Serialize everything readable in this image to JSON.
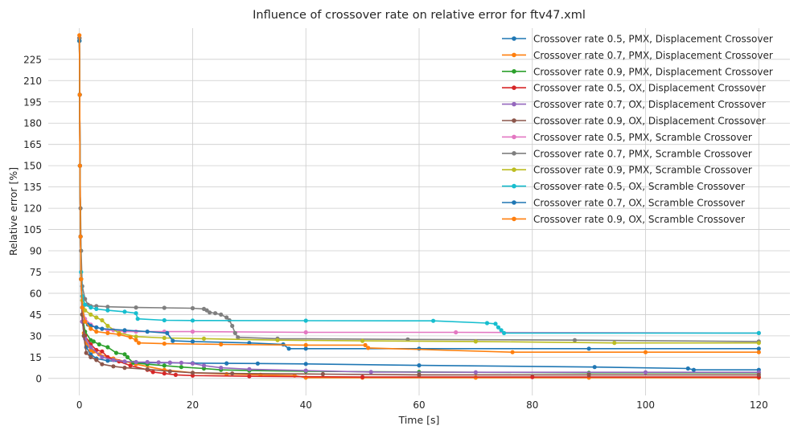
{
  "chart_data": {
    "type": "line",
    "title": "Influence of crossover rate on relative error for ftv47.xml",
    "xlabel": "Time [s]",
    "ylabel": "Relative error [%]",
    "xlim": [
      -5.5,
      125.5
    ],
    "ylim": [
      -12,
      247
    ],
    "xticks": [
      0,
      20,
      40,
      60,
      80,
      100,
      120
    ],
    "yticks": [
      0,
      15,
      30,
      45,
      60,
      75,
      90,
      105,
      120,
      135,
      150,
      165,
      180,
      195,
      210,
      225
    ],
    "grid": true,
    "legend_position": "top-right",
    "series": [
      {
        "name": "Crossover rate 0.5, PMX, Displacement Crossover",
        "color": "#1f77b4",
        "x": [
          0,
          0.05,
          0.1,
          0.2,
          0.3,
          0.5,
          0.8,
          1.2,
          2,
          3,
          5,
          8,
          12,
          16,
          20,
          26,
          31.5,
          40,
          60,
          91,
          107.5,
          108.5,
          120
        ],
        "y": [
          238,
          200,
          150,
          100,
          70,
          45,
          30,
          22,
          17,
          14,
          12.5,
          11.5,
          11,
          11,
          10.8,
          10.6,
          10.5,
          10.2,
          9.2,
          8,
          7,
          6,
          6
        ]
      },
      {
        "name": "Crossover rate 0.7, PMX, Displacement Crossover",
        "color": "#ff7f0e",
        "x": [
          0,
          0.05,
          0.1,
          0.2,
          0.3,
          0.5,
          0.8,
          1.2,
          2,
          2.5,
          3.5,
          6,
          10,
          15,
          20,
          26,
          32,
          38,
          40,
          50,
          70,
          90,
          120
        ],
        "y": [
          240,
          200,
          150,
          100,
          70,
          45,
          32,
          25,
          20,
          19,
          17,
          14,
          10,
          6,
          4,
          3,
          2.5,
          2,
          0.5,
          0.5,
          0.5,
          0.5,
          0.5
        ]
      },
      {
        "name": "Crossover rate 0.9, PMX, Displacement Crossover",
        "color": "#2ca02c",
        "x": [
          0,
          0.05,
          0.1,
          0.2,
          0.3,
          0.5,
          1,
          2,
          2.5,
          3.5,
          5,
          6.5,
          8,
          8.5,
          9.5,
          12,
          15,
          18,
          22,
          25,
          30,
          40,
          60,
          90,
          120
        ],
        "y": [
          240,
          200,
          150,
          100,
          70,
          45,
          33,
          27,
          26,
          24,
          22,
          18,
          17,
          15,
          11,
          10,
          9,
          8,
          7,
          6,
          5.5,
          5,
          4.5,
          4,
          4
        ]
      },
      {
        "name": "Crossover rate 0.5, OX, Displacement Crossover",
        "color": "#d62728",
        "x": [
          0,
          0.05,
          0.1,
          0.2,
          0.3,
          0.5,
          1,
          2,
          3,
          4,
          5,
          7,
          9,
          12,
          13,
          15,
          17,
          20,
          30,
          50,
          80,
          120
        ],
        "y": [
          240,
          200,
          150,
          100,
          70,
          40,
          30,
          24,
          20,
          19,
          15,
          12,
          9,
          6,
          4.5,
          3.5,
          2.5,
          2,
          1.5,
          1,
          1,
          1
        ]
      },
      {
        "name": "Crossover rate 0.7, OX, Displacement Crossover",
        "color": "#9467bd",
        "x": [
          0,
          0.05,
          0.1,
          0.2,
          0.3,
          0.5,
          1,
          2,
          4,
          6,
          8,
          10,
          12,
          14,
          16,
          18,
          20,
          22,
          25,
          30,
          40,
          51.5,
          70,
          100,
          120
        ],
        "y": [
          238,
          200,
          150,
          100,
          70,
          40,
          28,
          22,
          15,
          13,
          12,
          11.5,
          11.5,
          11.3,
          11.2,
          11,
          10.5,
          9,
          7.5,
          6.5,
          5.5,
          4.5,
          4.3,
          4.3,
          4.3
        ]
      },
      {
        "name": "Crossover rate 0.9, OX, Displacement Crossover",
        "color": "#8c564b",
        "x": [
          0,
          0.05,
          0.1,
          0.2,
          0.3,
          0.5,
          0.8,
          1.2,
          2,
          3,
          4,
          6,
          8,
          12,
          16,
          20,
          27,
          43,
          60,
          90,
          120
        ],
        "y": [
          238,
          200,
          150,
          100,
          70,
          45,
          30,
          18,
          15,
          13,
          10,
          8.5,
          7.5,
          6.5,
          5,
          4,
          3.5,
          3,
          2.5,
          2.5,
          2.5
        ]
      },
      {
        "name": "Crossover rate 0.5, PMX, Scramble Crossover",
        "color": "#e377c2",
        "x": [
          0,
          0.05,
          0.1,
          0.2,
          0.3,
          0.5,
          1,
          2,
          3,
          4,
          5,
          6,
          8,
          10,
          15,
          20,
          40,
          66.5,
          120
        ],
        "y": [
          238,
          200,
          150,
          100,
          70,
          50,
          42,
          38,
          36,
          35,
          34,
          34,
          33,
          33,
          33,
          33,
          32.5,
          32.5,
          32
        ]
      },
      {
        "name": "Crossover rate 0.7, PMX, Scramble Crossover",
        "color": "#7f7f7f",
        "x": [
          0,
          0.05,
          0.1,
          0.2,
          0.3,
          0.5,
          1,
          1.5,
          2,
          3,
          5,
          10,
          15,
          20,
          22,
          22.5,
          23,
          24,
          25,
          26,
          26.5,
          27,
          27.5,
          28,
          35,
          58,
          87.5,
          120
        ],
        "y": [
          240,
          200,
          150,
          120,
          90,
          65,
          56,
          52,
          51,
          51,
          50.5,
          50,
          49.8,
          49.5,
          49,
          48,
          46.5,
          46,
          45,
          43,
          41,
          37,
          32,
          29,
          28,
          27.5,
          27,
          26
        ]
      },
      {
        "name": "Crossover rate 0.9, PMX, Scramble Crossover",
        "color": "#bcbd22",
        "x": [
          0,
          0.05,
          0.1,
          0.2,
          0.3,
          0.5,
          1,
          2,
          3,
          4,
          5,
          7,
          10,
          15,
          22,
          35,
          50,
          70,
          94.5,
          120
        ],
        "y": [
          238,
          200,
          150,
          100,
          70,
          55,
          48,
          45,
          43,
          41,
          37,
          32,
          29.5,
          28.5,
          28,
          27,
          26.5,
          26,
          25,
          25
        ]
      },
      {
        "name": "Crossover rate 0.5, OX, Scramble Crossover",
        "color": "#17becf",
        "x": [
          0,
          0.05,
          0.1,
          0.2,
          0.3,
          0.5,
          1,
          2,
          3,
          5,
          8,
          10,
          10.3,
          15,
          20,
          40,
          62.5,
          72,
          73.5,
          74,
          74.5,
          75,
          120
        ],
        "y": [
          238,
          200,
          150,
          100,
          75,
          58,
          52,
          50,
          49,
          48,
          47,
          46,
          42,
          41,
          40.8,
          40.7,
          40.6,
          39,
          38.5,
          36,
          34,
          32,
          32
        ]
      },
      {
        "name": "Crossover rate 0.7, OX, Scramble Crossover",
        "color": "#1f77b4",
        "x": [
          0,
          0.05,
          0.1,
          0.2,
          0.3,
          0.5,
          1,
          1.5,
          2,
          3,
          4,
          8,
          12,
          15.5,
          16.5,
          20,
          30,
          36,
          37,
          40,
          60,
          90,
          120
        ],
        "y": [
          238,
          200,
          150,
          100,
          70,
          50,
          40,
          38,
          37,
          36,
          35,
          34,
          33,
          32,
          26.5,
          26,
          25,
          24,
          21,
          21,
          21,
          21,
          21
        ]
      },
      {
        "name": "Crossover rate 0.9, OX, Scramble Crossover",
        "color": "#ff7f0e",
        "x": [
          0,
          0.05,
          0.1,
          0.2,
          0.3,
          0.5,
          1,
          2,
          3,
          5,
          7,
          9,
          10,
          10.5,
          15,
          25,
          40,
          50.5,
          51,
          76.5,
          100,
          120
        ],
        "y": [
          242,
          200,
          150,
          100,
          70,
          50,
          40,
          35,
          33,
          32,
          31,
          29,
          27,
          25,
          24.5,
          24,
          23.5,
          23.5,
          21.5,
          18.5,
          18.5,
          18.5
        ]
      }
    ]
  }
}
